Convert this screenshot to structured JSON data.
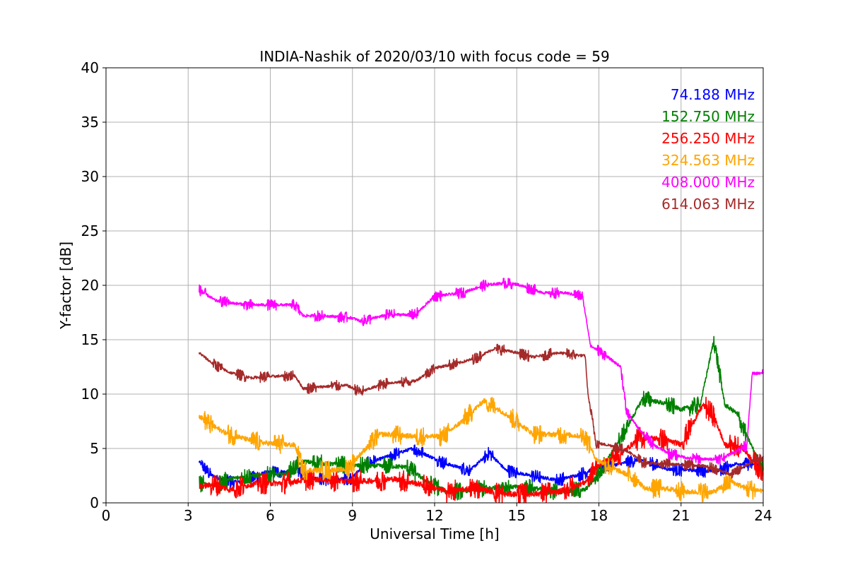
{
  "chart_data": {
    "type": "line",
    "title": "INDIA-Nashik of 2020/03/10 with focus code = 59",
    "xlabel": "Universal Time [h]",
    "ylabel": "Y-factor [dB]",
    "xlim": [
      0,
      24
    ],
    "ylim": [
      0,
      40
    ],
    "xticks": [
      0,
      3,
      6,
      9,
      12,
      15,
      18,
      21,
      24
    ],
    "yticks": [
      0,
      5,
      10,
      15,
      20,
      25,
      30,
      35,
      40
    ],
    "grid": true,
    "legend_position": "top-right",
    "series": [
      {
        "name": "74.188 MHz",
        "color": "#0000ff",
        "jitter": 0.6,
        "x": [
          3.4,
          3.8,
          4.4,
          5.0,
          5.8,
          7.0,
          7.5,
          8.2,
          9.0,
          9.4,
          10.2,
          11.2,
          12.4,
          13.3,
          14.0,
          14.6,
          15.5,
          16.5,
          17.3,
          17.9,
          18.8,
          19.5,
          20.5,
          21.5,
          22.3,
          23.0,
          24.0
        ],
        "y": [
          3.8,
          2.6,
          2.0,
          1.9,
          2.8,
          2.9,
          2.3,
          2.1,
          2.3,
          3.5,
          4.2,
          5.0,
          3.6,
          3.0,
          4.6,
          3.0,
          2.5,
          2.1,
          2.6,
          3.2,
          3.6,
          4.0,
          3.1,
          3.0,
          2.9,
          3.6,
          3.5
        ]
      },
      {
        "name": "152.750 MHz",
        "color": "#008000",
        "jitter": 0.8,
        "x": [
          3.4,
          4.0,
          4.5,
          5.3,
          6.5,
          7.2,
          8.0,
          8.8,
          9.3,
          10.0,
          11.0,
          11.8,
          12.5,
          13.5,
          14.5,
          15.5,
          16.5,
          17.5,
          18.0,
          19.0,
          19.6,
          20.3,
          21.0,
          21.7,
          22.2,
          22.6,
          23.0,
          24.0
        ],
        "y": [
          1.8,
          1.6,
          2.2,
          2.5,
          2.6,
          3.8,
          3.6,
          3.5,
          3.4,
          3.4,
          3.3,
          1.8,
          1.0,
          1.2,
          1.5,
          1.4,
          1.0,
          1.2,
          2.7,
          6.8,
          9.6,
          9.2,
          8.6,
          9.0,
          15.0,
          9.0,
          8.3,
          3.0
        ]
      },
      {
        "name": "256.250 MHz",
        "color": "#ff0000",
        "jitter": 1.0,
        "x": [
          3.4,
          4.0,
          4.5,
          5.5,
          6.5,
          7.5,
          8.5,
          9.5,
          10.5,
          11.5,
          12.5,
          13.5,
          14.5,
          15.5,
          16.5,
          17.5,
          18.0,
          18.8,
          19.5,
          20.2,
          21.0,
          21.8,
          22.2,
          22.6,
          23.2,
          24.0
        ],
        "y": [
          1.5,
          1.7,
          1.2,
          1.8,
          1.8,
          2.2,
          2.0,
          2.0,
          2.2,
          1.7,
          1.0,
          1.4,
          0.8,
          0.8,
          1.0,
          1.9,
          3.5,
          4.5,
          6.0,
          5.9,
          5.4,
          9.0,
          8.0,
          5.3,
          5.2,
          2.7
        ]
      },
      {
        "name": "324.563 MHz",
        "color": "#ffa500",
        "jitter": 0.9,
        "x": [
          3.4,
          3.8,
          4.4,
          5.2,
          5.8,
          6.9,
          7.2,
          8.0,
          8.8,
          9.3,
          10.0,
          10.3,
          11.3,
          12.3,
          13.0,
          13.8,
          14.2,
          15.0,
          15.6,
          16.6,
          17.5,
          17.9,
          18.5,
          19.3,
          19.7,
          20.5,
          21.2,
          22.2,
          22.8,
          23.4,
          24.0
        ],
        "y": [
          8.0,
          7.2,
          6.4,
          5.8,
          5.5,
          5.3,
          3.0,
          3.0,
          3.1,
          4.5,
          6.3,
          6.3,
          6.1,
          6.1,
          7.5,
          9.4,
          8.8,
          7.5,
          6.3,
          6.3,
          6.1,
          4.0,
          3.2,
          2.3,
          1.3,
          1.3,
          1.0,
          1.0,
          2.0,
          1.3,
          1.1
        ]
      },
      {
        "name": "408.000 MHz",
        "color": "#ff00ff",
        "jitter": 0.5,
        "x": [
          3.4,
          4.0,
          4.5,
          5.2,
          5.8,
          6.9,
          7.2,
          8.0,
          9.0,
          9.3,
          10.3,
          11.3,
          12.0,
          13.0,
          13.8,
          14.5,
          15.0,
          16.0,
          16.8,
          17.4,
          17.7,
          18.0,
          18.8,
          19.0,
          19.4,
          20.0,
          20.6,
          21.3,
          22.0,
          22.5,
          23.4,
          23.6,
          24.0
        ],
        "y": [
          19.6,
          18.6,
          18.4,
          18.2,
          18.2,
          18.2,
          17.2,
          17.2,
          17.0,
          16.7,
          17.3,
          17.3,
          19.0,
          19.3,
          20.0,
          20.2,
          20.1,
          19.3,
          19.3,
          19.0,
          14.4,
          14.0,
          12.5,
          8.4,
          7.0,
          5.3,
          4.5,
          4.1,
          4.0,
          4.1,
          5.3,
          11.9,
          11.9
        ]
      },
      {
        "name": "614.063 MHz",
        "color": "#a52a2a",
        "jitter": 0.5,
        "x": [
          3.4,
          3.9,
          4.5,
          5.3,
          5.8,
          6.9,
          7.2,
          8.0,
          8.8,
          9.3,
          10.2,
          11.3,
          12.0,
          12.8,
          13.5,
          14.2,
          15.0,
          15.6,
          16.5,
          17.5,
          17.6,
          17.9,
          18.6,
          19.1,
          19.6,
          20.2,
          21.0,
          21.8,
          22.2,
          22.8,
          23.4,
          24.0
        ],
        "y": [
          13.8,
          12.8,
          12.0,
          11.5,
          11.6,
          11.7,
          10.5,
          10.7,
          10.8,
          10.2,
          11.0,
          11.2,
          12.4,
          12.8,
          13.3,
          14.2,
          13.8,
          13.4,
          13.8,
          13.5,
          10.0,
          5.5,
          5.2,
          4.7,
          3.7,
          3.6,
          3.5,
          3.4,
          3.2,
          2.6,
          3.5,
          4.3
        ]
      }
    ]
  }
}
